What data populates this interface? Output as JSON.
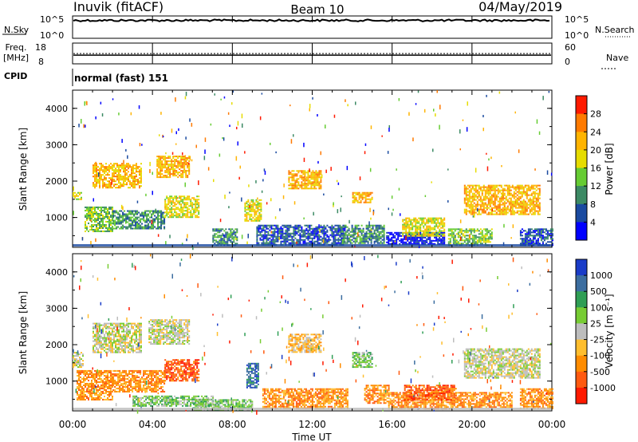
{
  "header": {
    "station": "Inuvik (fitACF)",
    "beam": "Beam 10",
    "date": "04/May/2019"
  },
  "status_panels": {
    "nsky_label": "N.Sky",
    "nsearch_label": "N.Search",
    "freq_label": "Freq.",
    "freq_unit": "[MHz]",
    "nave_label": "Nave",
    "cpid_label": "CPID",
    "cpid_value": "normal (fast) 151",
    "noise_ticks_left": [
      "10^5",
      "10^0"
    ],
    "noise_ticks_right": [
      "10^5",
      "10^0"
    ],
    "freq_ticks_left": [
      "18",
      "8"
    ],
    "nave_ticks_right": [
      "60",
      "0"
    ],
    "nsky_level": 0.8,
    "freq_level": 0.42
  },
  "chart_data": [
    {
      "type": "heatmap",
      "panel": "power",
      "ylabel": "Slant Range [km]",
      "xlabel": "",
      "ylim": [
        180,
        4500
      ],
      "yticks": [
        "1000",
        "2000",
        "3000",
        "4000"
      ],
      "colorbar_label": "Power [dB]",
      "colorbar_ticks": [
        "28",
        "24",
        "20",
        "16",
        "12",
        "8",
        "4"
      ],
      "colorbar_colors": [
        "#ff1a00",
        "#ff7a00",
        "#ffb400",
        "#e6dc00",
        "#66cc33",
        "#3c8a64",
        "#1a4aa0",
        "#0000ff"
      ],
      "patches": [
        {
          "t0": 0.0,
          "t1": 0.4,
          "r0": 1500,
          "r1": 1700,
          "level": 3
        },
        {
          "t0": 0.6,
          "t1": 2.0,
          "r0": 600,
          "r1": 1300,
          "level": 4
        },
        {
          "t0": 2.0,
          "t1": 4.6,
          "r0": 700,
          "r1": 1200,
          "level": 5
        },
        {
          "t0": 4.6,
          "t1": 6.3,
          "r0": 1000,
          "r1": 1600,
          "level": 3
        },
        {
          "t0": 1.0,
          "t1": 3.4,
          "r0": 1800,
          "r1": 2500,
          "level": 2
        },
        {
          "t0": 4.2,
          "t1": 5.8,
          "r0": 2100,
          "r1": 2700,
          "level": 2
        },
        {
          "t0": 7.0,
          "t1": 8.2,
          "r0": 250,
          "r1": 700,
          "level": 5
        },
        {
          "t0": 8.6,
          "t1": 9.4,
          "r0": 900,
          "r1": 1500,
          "level": 3
        },
        {
          "t0": 9.2,
          "t1": 13.6,
          "r0": 250,
          "r1": 800,
          "level": 6
        },
        {
          "t0": 10.8,
          "t1": 12.4,
          "r0": 1800,
          "r1": 2300,
          "level": 2
        },
        {
          "t0": 14.0,
          "t1": 15.0,
          "r0": 1400,
          "r1": 1700,
          "level": 2
        },
        {
          "t0": 13.4,
          "t1": 15.6,
          "r0": 300,
          "r1": 800,
          "level": 5
        },
        {
          "t0": 15.7,
          "t1": 18.6,
          "r0": 250,
          "r1": 600,
          "level": 7
        },
        {
          "t0": 16.5,
          "t1": 18.6,
          "r0": 500,
          "r1": 1000,
          "level": 3
        },
        {
          "t0": 18.8,
          "t1": 21.0,
          "r0": 250,
          "r1": 700,
          "level": 4
        },
        {
          "t0": 19.6,
          "t1": 23.4,
          "r0": 1100,
          "r1": 1900,
          "level": 2
        },
        {
          "t0": 22.4,
          "t1": 24.0,
          "r0": 250,
          "r1": 700,
          "level": 6
        }
      ]
    },
    {
      "type": "heatmap",
      "panel": "velocity",
      "ylabel": "Slant Range [km]",
      "xlabel": "Time UT",
      "ylim": [
        180,
        4500
      ],
      "yticks": [
        "1000",
        "2000",
        "3000",
        "4000"
      ],
      "xticks": [
        "00:00",
        "04:00",
        "08:00",
        "12:00",
        "16:00",
        "20:00",
        "00:00"
      ],
      "xlim": [
        0,
        24
      ],
      "colorbar_label": "Velocity [m s⁻¹]",
      "colorbar_ticks": [
        "1000",
        "500",
        "100",
        "25",
        "-25",
        "-100",
        "-500",
        "-1000"
      ],
      "colorbar_colors": [
        "#1a3cc8",
        "#3c6ea0",
        "#2f9e55",
        "#77cc33",
        "#bdbdbd",
        "#ffbe2e",
        "#ff8c00",
        "#ff5a10",
        "#ff1a00"
      ],
      "patches": [
        {
          "t0": 0.0,
          "t1": 0.5,
          "r0": 1400,
          "r1": 1800,
          "level": 4
        },
        {
          "t0": 0.2,
          "t1": 2.0,
          "r0": 500,
          "r1": 1300,
          "level": 6
        },
        {
          "t0": 2.0,
          "t1": 4.6,
          "r0": 700,
          "r1": 1300,
          "level": 6
        },
        {
          "t0": 4.6,
          "t1": 6.3,
          "r0": 1000,
          "r1": 1600,
          "level": 7
        },
        {
          "t0": 1.0,
          "t1": 3.4,
          "r0": 1800,
          "r1": 2600,
          "level": 4
        },
        {
          "t0": 3.8,
          "t1": 5.8,
          "r0": 2000,
          "r1": 2700,
          "level": 4
        },
        {
          "t0": 3.0,
          "t1": 7.0,
          "r0": 300,
          "r1": 600,
          "level": 3
        },
        {
          "t0": 6.0,
          "t1": 9.0,
          "r0": 200,
          "r1": 500,
          "level": 3
        },
        {
          "t0": 8.7,
          "t1": 9.3,
          "r0": 800,
          "r1": 1500,
          "level": 1
        },
        {
          "t0": 9.5,
          "t1": 13.8,
          "r0": 250,
          "r1": 800,
          "level": 6
        },
        {
          "t0": 10.8,
          "t1": 12.4,
          "r0": 1800,
          "r1": 2300,
          "level": 5
        },
        {
          "t0": 14.0,
          "t1": 15.0,
          "r0": 1400,
          "r1": 1800,
          "level": 3
        },
        {
          "t0": 14.6,
          "t1": 15.8,
          "r0": 400,
          "r1": 900,
          "level": 6
        },
        {
          "t0": 15.8,
          "t1": 19.0,
          "r0": 250,
          "r1": 700,
          "level": 6
        },
        {
          "t0": 16.6,
          "t1": 19.2,
          "r0": 500,
          "r1": 900,
          "level": 7
        },
        {
          "t0": 19.0,
          "t1": 22.0,
          "r0": 300,
          "r1": 700,
          "level": 6
        },
        {
          "t0": 19.6,
          "t1": 23.4,
          "r0": 1100,
          "r1": 1900,
          "level": 4
        },
        {
          "t0": 22.4,
          "t1": 24.0,
          "r0": 250,
          "r1": 800,
          "level": 6
        }
      ]
    }
  ]
}
